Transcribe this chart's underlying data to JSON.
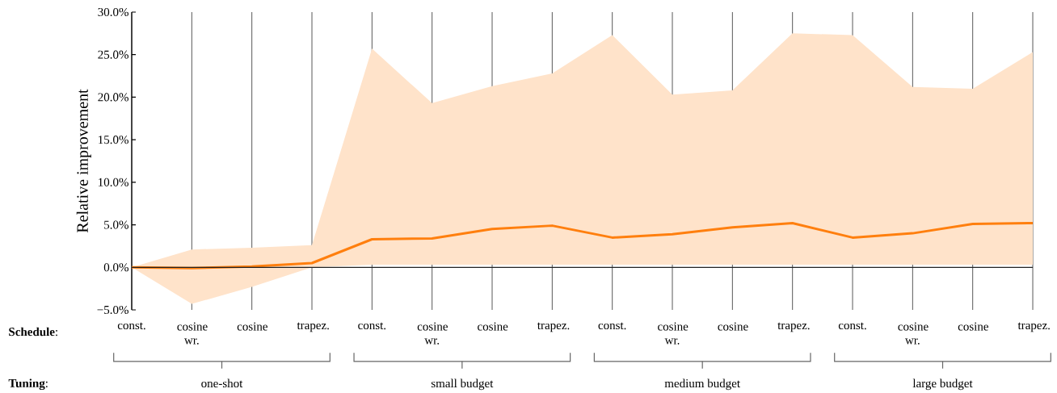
{
  "chart_data": {
    "type": "line",
    "xlabel": "**Schedule**:",
    "ylabel": "Relative improvement",
    "categories": [
      "const.",
      "cosine wr.",
      "cosine",
      "trapez.",
      "const.",
      "cosine wr.",
      "cosine",
      "trapez.",
      "const.",
      "cosine wr.",
      "cosine",
      "trapez.",
      "const.",
      "cosine wr.",
      "cosine",
      "trapez."
    ],
    "series": [
      {
        "color": "#ff7f0e",
        "values": [
          0.0,
          -0.1,
          0.1,
          0.5,
          3.3,
          3.4,
          4.5,
          4.9,
          3.5,
          3.9,
          4.7,
          5.2,
          3.5,
          4.0,
          5.1,
          5.2
        ],
        "lower": [
          0.0,
          -4.3,
          -2.3,
          0.0,
          0.3,
          0.3,
          0.3,
          0.3,
          0.3,
          0.3,
          0.3,
          0.3,
          0.3,
          0.3,
          0.3,
          0.3
        ],
        "upper": [
          0.0,
          2.1,
          2.3,
          2.6,
          25.7,
          19.3,
          21.3,
          22.8,
          27.3,
          20.3,
          20.8,
          27.5,
          27.3,
          21.2,
          21.0,
          25.3
        ]
      }
    ],
    "ylim": [
      -5,
      30
    ],
    "yticks": [
      {
        "value": -5,
        "label": "−5.0%"
      },
      {
        "value": 0,
        "label": "0.0%"
      },
      {
        "value": 5,
        "label": "5.0%"
      },
      {
        "value": 10,
        "label": "10.0%"
      },
      {
        "value": 15,
        "label": "15.0%"
      },
      {
        "value": 20,
        "label": "20.0%"
      },
      {
        "value": 25,
        "label": "25.0%"
      },
      {
        "value": 30,
        "label": "30.0%"
      }
    ],
    "grid": "x",
    "marker": "none",
    "line_style": "solid",
    "ref_lines": [
      {
        "axis": "y",
        "value": 0,
        "color": "#222222"
      }
    ],
    "annotations": [
      "**Tuning**:",
      "one-shot",
      "small budget",
      "medium budget",
      "large budget"
    ]
  }
}
